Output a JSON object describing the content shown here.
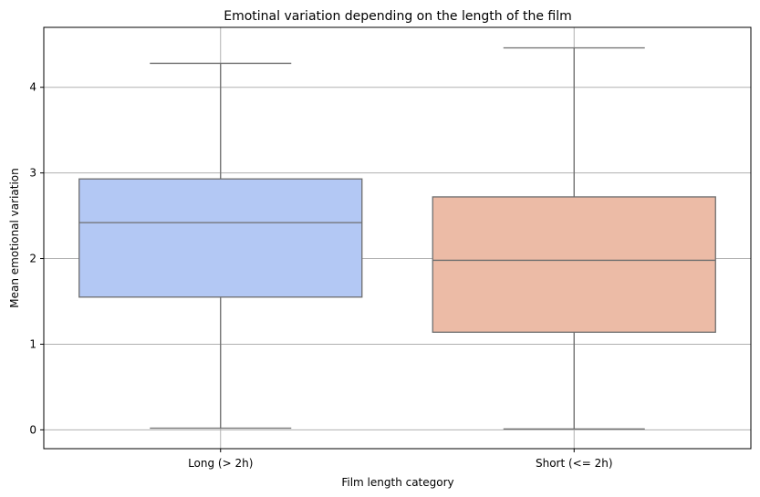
{
  "chart_data": {
    "type": "box",
    "title": "Emotinal variation depending on the length of the film",
    "xlabel": "Film length category",
    "ylabel": "Mean emotional variation",
    "ylim": [
      -0.22,
      4.7
    ],
    "yticks": [
      0,
      1,
      2,
      3,
      4
    ],
    "grid": true,
    "categories": [
      "Long (> 2h)",
      "Short (<= 2h)"
    ],
    "boxes": [
      {
        "category": "Long (> 2h)",
        "min": 0.02,
        "q1": 1.55,
        "median": 2.42,
        "q3": 2.93,
        "max": 4.28,
        "color": "#b3c8f4"
      },
      {
        "category": "Short (<= 2h)",
        "min": 0.01,
        "q1": 1.14,
        "median": 1.98,
        "q3": 2.72,
        "max": 4.46,
        "color": "#ecbba6"
      }
    ],
    "line_color": "#6e6e6e"
  }
}
